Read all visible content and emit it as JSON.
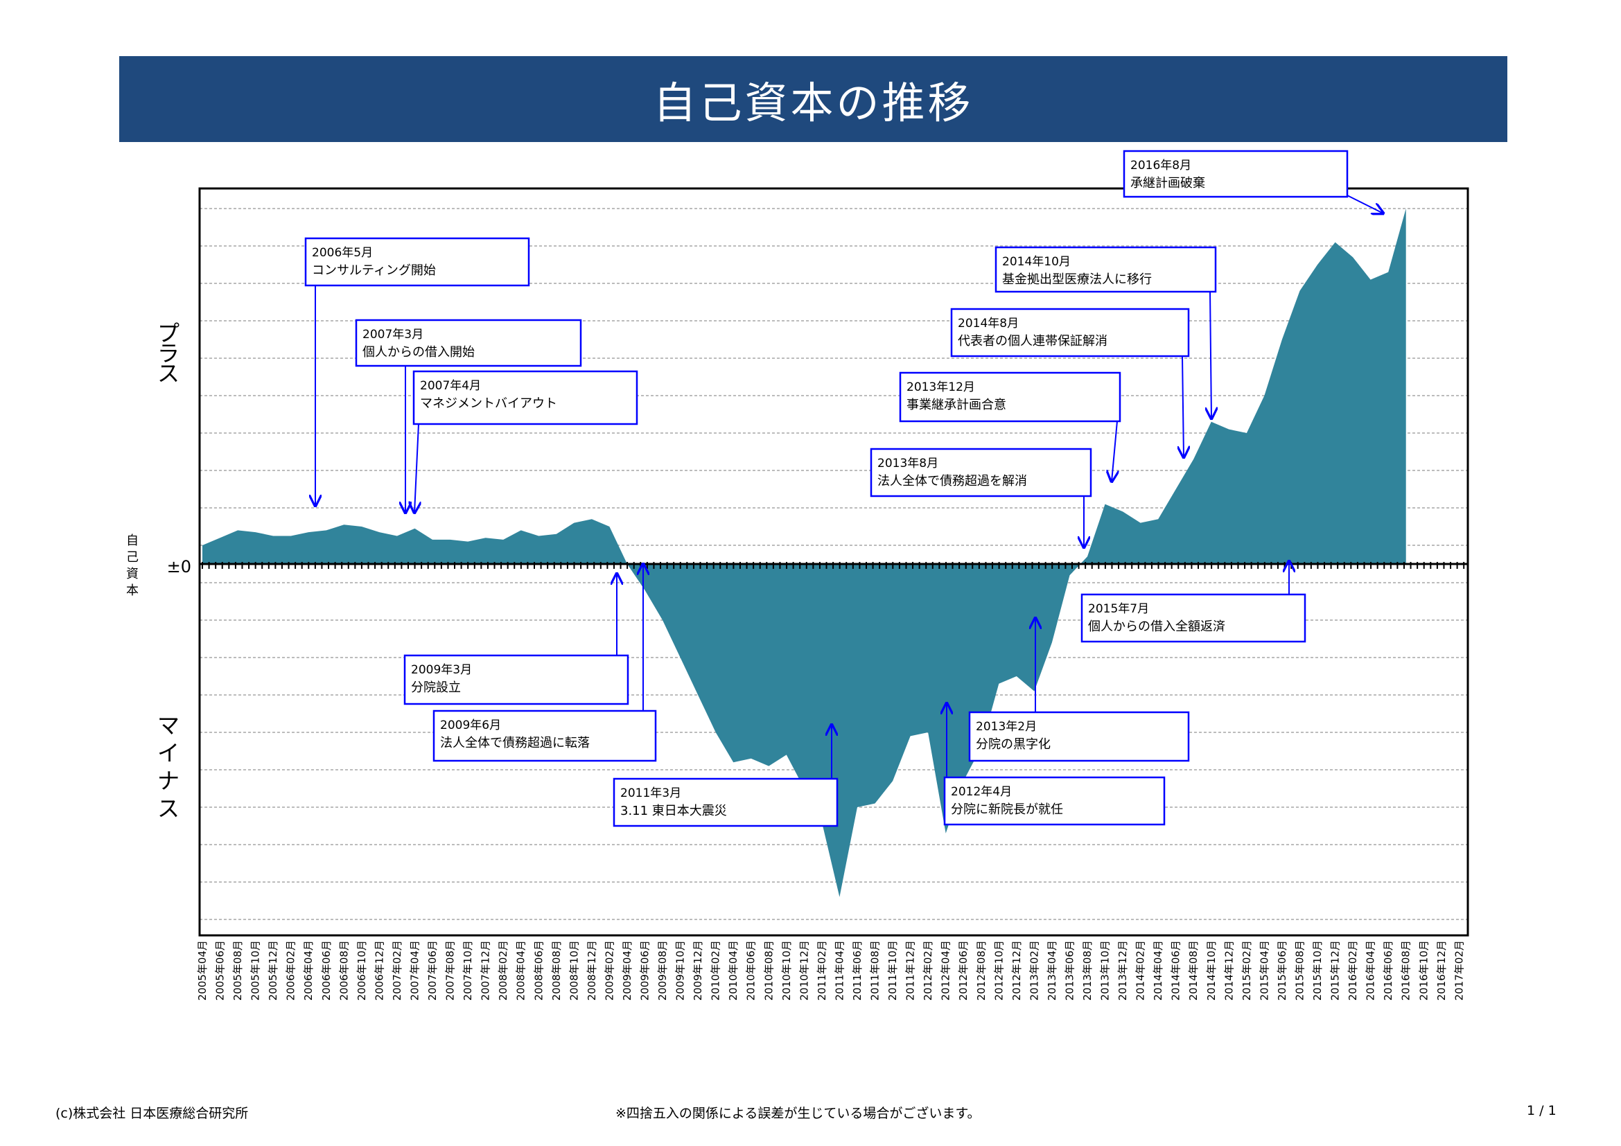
{
  "page": {
    "title": "自己資本の推移",
    "footer_left": "(c)株式会社 日本医療総合研究所",
    "footer_center": "※四捨五入の関係による誤差が生じている場合がございます。",
    "footer_right": "1 / 1"
  },
  "colors": {
    "title_bar": "#1f497d",
    "area": "#31849b",
    "annotation": "#0000ff",
    "grid": "#a6a6a6"
  },
  "chart_data": {
    "type": "area",
    "ylabel": "自己資本",
    "zero_label": "±0",
    "plus_label": "プラス",
    "minus_label": "マイナス",
    "x_ticks": [
      "2005年04月",
      "2005年06月",
      "2005年08月",
      "2005年10月",
      "2005年12月",
      "2006年02月",
      "2006年04月",
      "2006年06月",
      "2006年08月",
      "2006年10月",
      "2006年12月",
      "2007年02月",
      "2007年04月",
      "2007年06月",
      "2007年08月",
      "2007年10月",
      "2007年12月",
      "2008年02月",
      "2008年04月",
      "2008年06月",
      "2008年08月",
      "2008年10月",
      "2008年12月",
      "2009年02月",
      "2009年04月",
      "2009年06月",
      "2009年08月",
      "2009年10月",
      "2009年12月",
      "2010年02月",
      "2010年04月",
      "2010年06月",
      "2010年08月",
      "2010年10月",
      "2010年12月",
      "2011年02月",
      "2011年04月",
      "2011年06月",
      "2011年08月",
      "2011年10月",
      "2011年12月",
      "2012年02月",
      "2012年04月",
      "2012年06月",
      "2012年08月",
      "2012年10月",
      "2012年12月",
      "2013年02月",
      "2013年04月",
      "2013年06月",
      "2013年08月",
      "2013年10月",
      "2013年12月",
      "2014年02月",
      "2014年04月",
      "2014年06月",
      "2014年08月",
      "2014年10月",
      "2014年12月",
      "2015年02月",
      "2015年04月",
      "2015年06月",
      "2015年08月",
      "2015年10月",
      "2015年12月",
      "2016年02月",
      "2016年04月",
      "2016年06月",
      "2016年08月",
      "2016年10月",
      "2016年12月",
      "2017年02月"
    ],
    "ylim": [
      -10,
      10
    ],
    "grid": true,
    "points": [
      [
        "2005年04月",
        0.5
      ],
      [
        "2005年06月",
        0.7
      ],
      [
        "2005年08月",
        0.9
      ],
      [
        "2005年10月",
        0.85
      ],
      [
        "2005年12月",
        0.75
      ],
      [
        "2006年02月",
        0.75
      ],
      [
        "2006年04月",
        0.85
      ],
      [
        "2006年06月",
        0.9
      ],
      [
        "2006年08月",
        1.05
      ],
      [
        "2006年10月",
        1.0
      ],
      [
        "2006年12月",
        0.85
      ],
      [
        "2007年02月",
        0.75
      ],
      [
        "2007年04月",
        0.95
      ],
      [
        "2007年06月",
        0.65
      ],
      [
        "2007年08月",
        0.65
      ],
      [
        "2007年10月",
        0.6
      ],
      [
        "2007年12月",
        0.7
      ],
      [
        "2008年02月",
        0.65
      ],
      [
        "2008年04月",
        0.9
      ],
      [
        "2008年06月",
        0.75
      ],
      [
        "2008年08月",
        0.8
      ],
      [
        "2008年10月",
        1.1
      ],
      [
        "2008年12月",
        1.2
      ],
      [
        "2009年02月",
        1.0
      ],
      [
        "2009年04月",
        0.0
      ],
      [
        "2009年06月",
        -0.7
      ],
      [
        "2009年08月",
        -1.5
      ],
      [
        "2009年10月",
        -2.5
      ],
      [
        "2009年12月",
        -3.5
      ],
      [
        "2010年02月",
        -4.5
      ],
      [
        "2010年04月",
        -5.3
      ],
      [
        "2010年06月",
        -5.2
      ],
      [
        "2010年08月",
        -5.4
      ],
      [
        "2010年10月",
        -5.1
      ],
      [
        "2010年12月",
        -6.0
      ],
      [
        "2011年02月",
        -6.9
      ],
      [
        "2011年04月",
        -8.9
      ],
      [
        "2011年06月",
        -6.5
      ],
      [
        "2011年08月",
        -6.4
      ],
      [
        "2011年10月",
        -5.8
      ],
      [
        "2011年12月",
        -4.6
      ],
      [
        "2012年02月",
        -4.5
      ],
      [
        "2012年04月",
        -7.2
      ],
      [
        "2012年06月",
        -5.8
      ],
      [
        "2012年08月",
        -4.9
      ],
      [
        "2012年10月",
        -3.2
      ],
      [
        "2012年12月",
        -3.0
      ],
      [
        "2013年02月",
        -3.4
      ],
      [
        "2013年04月",
        -2.1
      ],
      [
        "2013年06月",
        -0.3
      ],
      [
        "2013年08月",
        0.2
      ],
      [
        "2013年10月",
        1.6
      ],
      [
        "2013年12月",
        1.4
      ],
      [
        "2014年02月",
        1.1
      ],
      [
        "2014年04月",
        1.2
      ],
      [
        "2014年06月",
        2.0
      ],
      [
        "2014年08月",
        2.8
      ],
      [
        "2014年10月",
        3.8
      ],
      [
        "2014年12月",
        3.6
      ],
      [
        "2015年02月",
        3.5
      ],
      [
        "2015年04月",
        4.5
      ],
      [
        "2015年06月",
        6.0
      ],
      [
        "2015年08月",
        7.3
      ],
      [
        "2015年10月",
        8.0
      ],
      [
        "2015年12月",
        8.6
      ],
      [
        "2016年02月",
        8.2
      ],
      [
        "2016年04月",
        7.6
      ],
      [
        "2016年06月",
        7.8
      ],
      [
        "2016年08月",
        9.5
      ]
    ],
    "annotations": [
      {
        "date_label": "2006年5月",
        "event": "コンサルティング開始"
      },
      {
        "date_label": "2007年3月",
        "event": "個人からの借入開始"
      },
      {
        "date_label": "2007年4月",
        "event": "マネジメントバイアウト"
      },
      {
        "date_label": "2009年3月",
        "event": "分院設立"
      },
      {
        "date_label": "2009年6月",
        "event": "法人全体で債務超過に転落"
      },
      {
        "date_label": "2011年3月",
        "event": "3.11 東日本大震災"
      },
      {
        "date_label": "2012年4月",
        "event": "分院に新院長が就任"
      },
      {
        "date_label": "2013年2月",
        "event": "分院の黒字化"
      },
      {
        "date_label": "2013年8月",
        "event": "法人全体で債務超過を解消"
      },
      {
        "date_label": "2013年12月",
        "event": "事業継承計画合意"
      },
      {
        "date_label": "2014年8月",
        "event": "代表者の個人連帯保証解消"
      },
      {
        "date_label": "2014年10月",
        "event": "基金拠出型医療法人に移行"
      },
      {
        "date_label": "2015年7月",
        "event": "個人からの借入全額返済"
      },
      {
        "date_label": "2016年8月",
        "event": "承継計画破棄"
      }
    ]
  }
}
